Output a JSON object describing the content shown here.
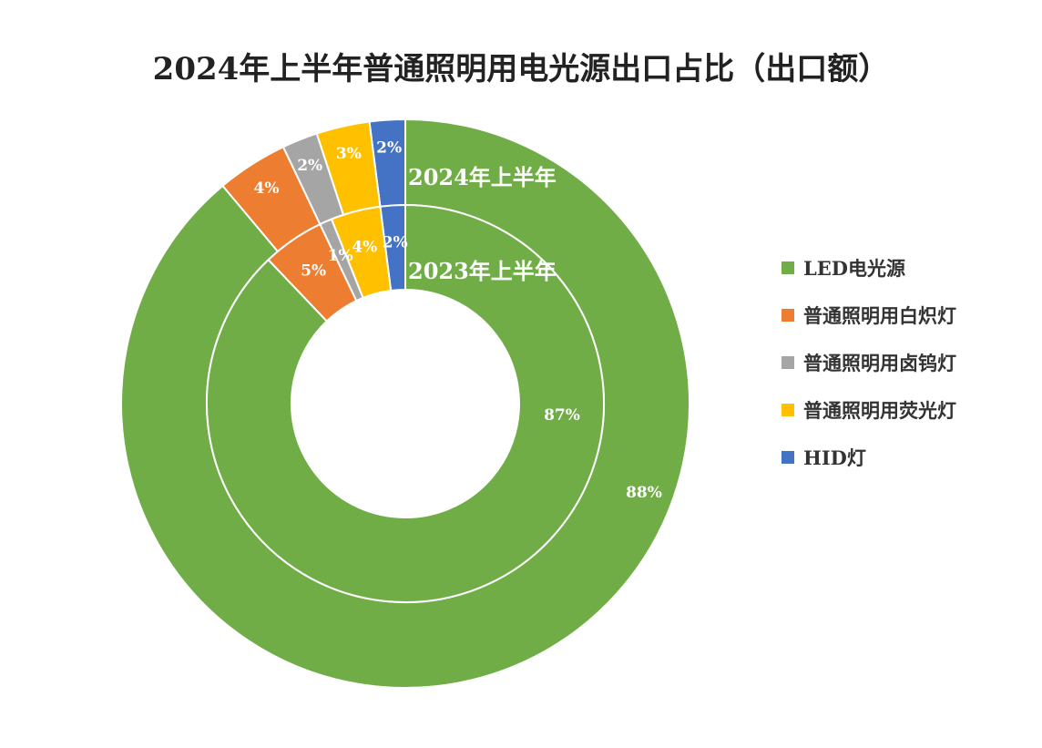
{
  "chart_data": {
    "type": "donut",
    "title": "2024年上半年普通照明用电光源出口占比（出口额）",
    "categories": [
      "LED电光源",
      "普通照明用白炽灯",
      "普通照明用卤钨灯",
      "普通照明用荧光灯",
      "HID灯"
    ],
    "colors": [
      "#70ad47",
      "#ed7d31",
      "#a5a5a5",
      "#ffc000",
      "#4472c4"
    ],
    "series": [
      {
        "name": "2024年上半年",
        "values": [
          88,
          4,
          2,
          3,
          2
        ],
        "labels": [
          "88%",
          "4%",
          "2%",
          "3%",
          "2%"
        ]
      },
      {
        "name": "2023年上半年",
        "values": [
          87,
          5,
          1,
          4,
          2
        ],
        "labels": [
          "87%",
          "5%",
          "1%",
          "4%",
          "2%"
        ]
      }
    ],
    "legend_position": "right"
  }
}
